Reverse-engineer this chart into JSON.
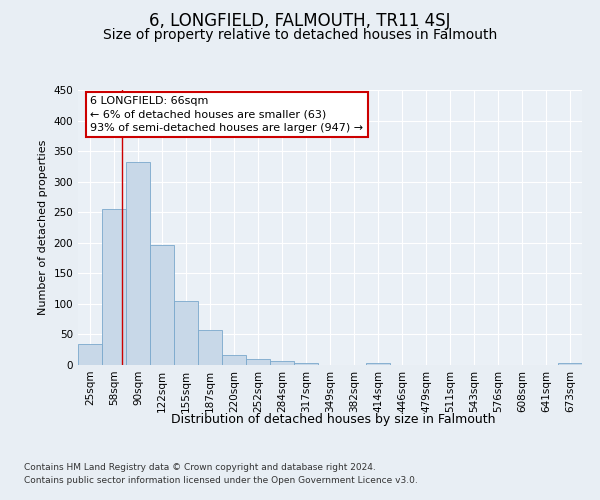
{
  "title": "6, LONGFIELD, FALMOUTH, TR11 4SJ",
  "subtitle": "Size of property relative to detached houses in Falmouth",
  "xlabel": "Distribution of detached houses by size in Falmouth",
  "ylabel": "Number of detached properties",
  "categories": [
    "25sqm",
    "58sqm",
    "90sqm",
    "122sqm",
    "155sqm",
    "187sqm",
    "220sqm",
    "252sqm",
    "284sqm",
    "317sqm",
    "349sqm",
    "382sqm",
    "414sqm",
    "446sqm",
    "479sqm",
    "511sqm",
    "543sqm",
    "576sqm",
    "608sqm",
    "641sqm",
    "673sqm"
  ],
  "values": [
    35,
    255,
    332,
    197,
    104,
    57,
    17,
    10,
    7,
    4,
    0,
    0,
    4,
    0,
    0,
    0,
    0,
    0,
    0,
    0,
    4
  ],
  "bar_color": "#c8d8e8",
  "bar_edge_color": "#7aa8cc",
  "red_line_x": 1.35,
  "annotation_text": "6 LONGFIELD: 66sqm\n← 6% of detached houses are smaller (63)\n93% of semi-detached houses are larger (947) →",
  "annotation_box_color": "#ffffff",
  "annotation_box_edge_color": "#cc0000",
  "ylim": [
    0,
    450
  ],
  "yticks": [
    0,
    50,
    100,
    150,
    200,
    250,
    300,
    350,
    400,
    450
  ],
  "bg_color": "#e8eef4",
  "plot_bg_color": "#eaf0f6",
  "footer_line1": "Contains HM Land Registry data © Crown copyright and database right 2024.",
  "footer_line2": "Contains public sector information licensed under the Open Government Licence v3.0.",
  "title_fontsize": 12,
  "subtitle_fontsize": 10,
  "xlabel_fontsize": 9,
  "ylabel_fontsize": 8,
  "tick_fontsize": 7.5,
  "footer_fontsize": 6.5,
  "annotation_fontsize": 8
}
